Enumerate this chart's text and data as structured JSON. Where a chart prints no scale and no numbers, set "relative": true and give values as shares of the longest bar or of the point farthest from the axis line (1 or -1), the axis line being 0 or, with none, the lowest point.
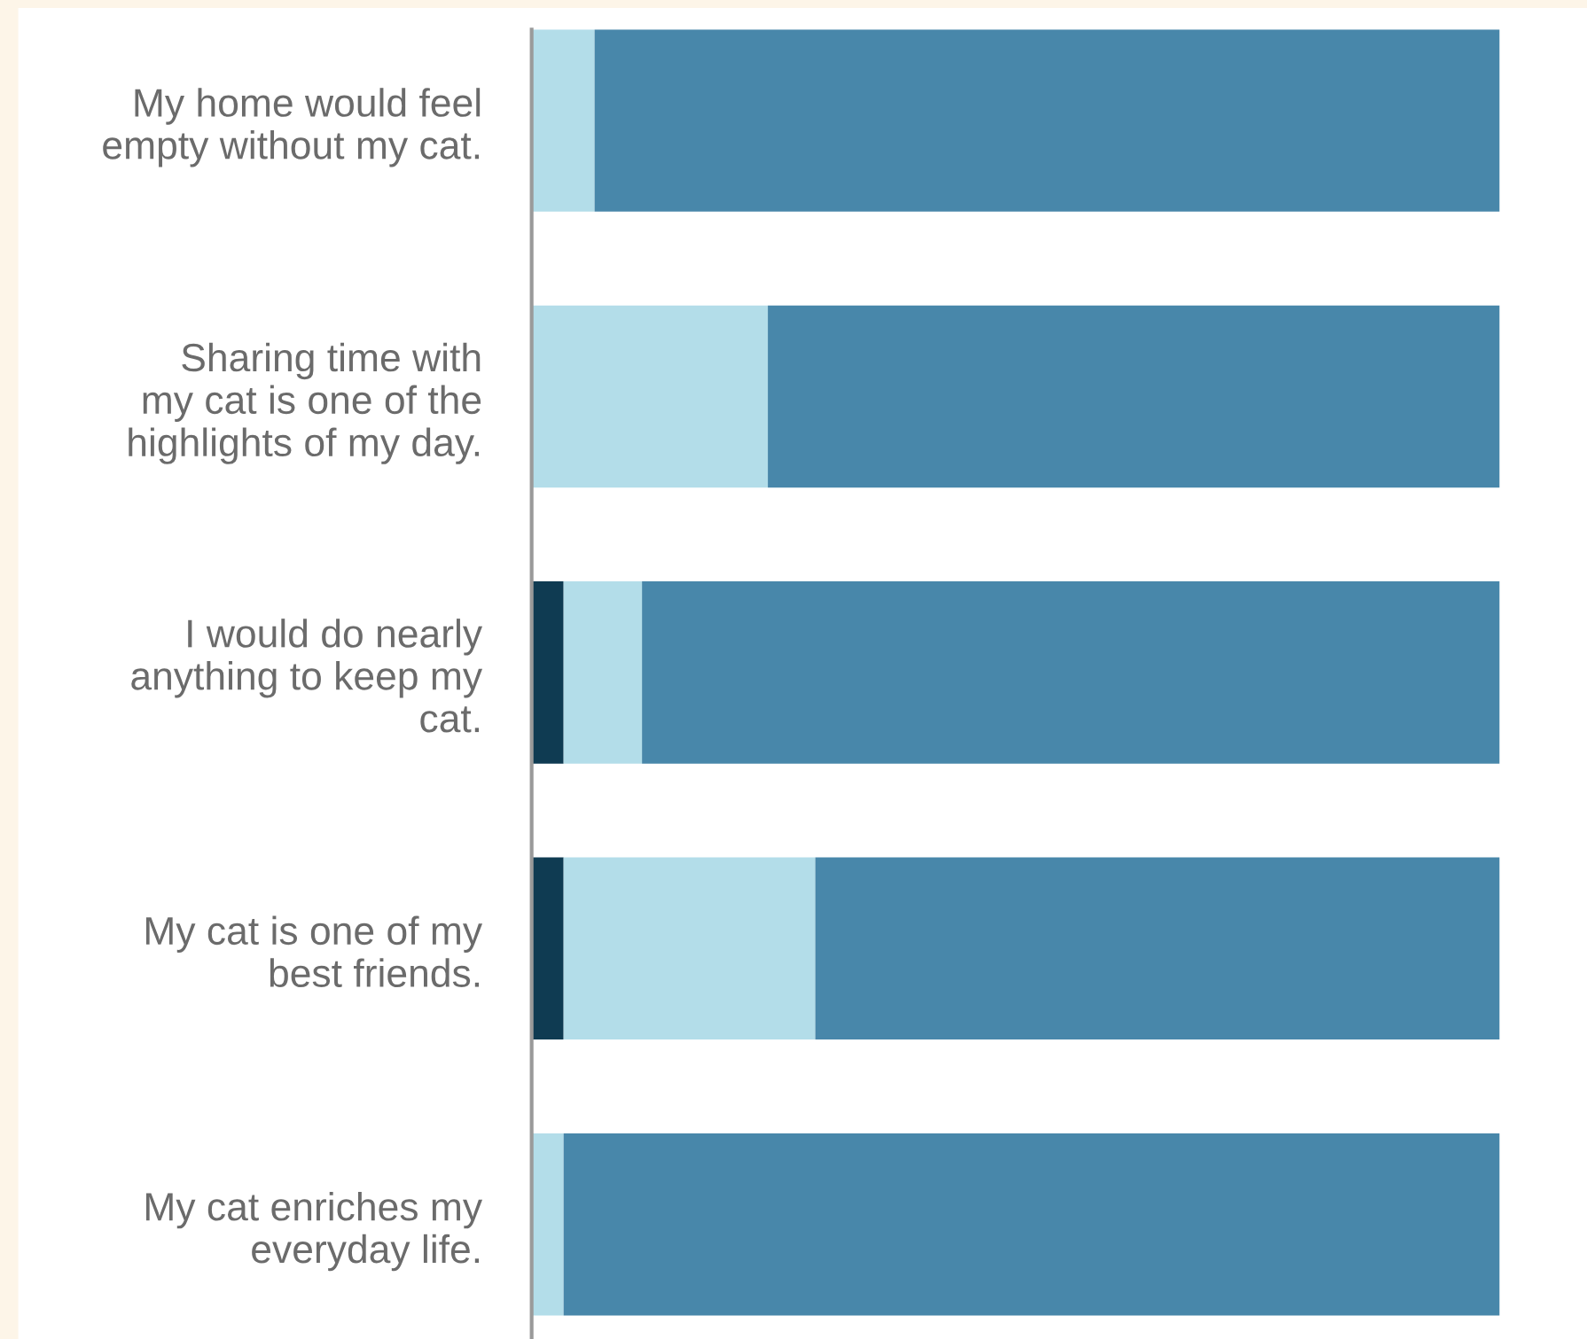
{
  "chart_data": {
    "type": "bar",
    "orientation": "horizontal",
    "stacked": true,
    "relative": true,
    "categories": [
      "My home would feel\nempty without my cat.",
      "Sharing time with\nmy cat is one of the\nhighlights of my day.",
      "I would do nearly\nanything to keep my\ncat.",
      "My cat is one of my\nbest friends.",
      "My cat enriches my\neveryday life."
    ],
    "series": [
      {
        "color": "#0f3b52",
        "values": [
          0,
          0,
          0.033,
          0.033,
          0
        ]
      },
      {
        "color": "#b3dde9",
        "values": [
          0.065,
          0.244,
          0.081,
          0.26,
          0.033
        ]
      },
      {
        "color": "#4887aa",
        "values": [
          0.935,
          0.756,
          0.886,
          0.707,
          0.967
        ]
      }
    ]
  }
}
